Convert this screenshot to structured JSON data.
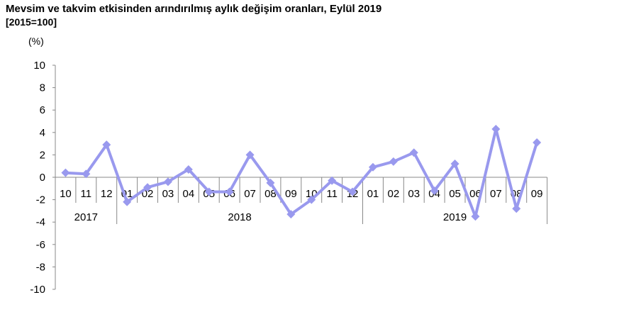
{
  "chart_data": {
    "type": "line",
    "title": "Mevsim ve takvim etkisinden arındırılmış aylık değişim oranları, Eylül 2019",
    "subtitle": "[2015=100]",
    "ylabel": "(%)",
    "ylim": [
      -10,
      10
    ],
    "yticks": [
      "10",
      "8",
      "6",
      "4",
      "2",
      "0",
      "-2",
      "-4",
      "-6",
      "-8",
      "-10"
    ],
    "categories": [
      "10",
      "11",
      "12",
      "01",
      "02",
      "03",
      "04",
      "05",
      "06",
      "07",
      "08",
      "09",
      "10",
      "11",
      "12",
      "01",
      "02",
      "03",
      "04",
      "05",
      "06",
      "07",
      "08",
      "09"
    ],
    "year_groups": [
      {
        "label": "2017",
        "count": 3
      },
      {
        "label": "2018",
        "count": 12
      },
      {
        "label": "2019",
        "count": 9
      }
    ],
    "values": [
      0.4,
      0.3,
      2.9,
      -2.2,
      -0.9,
      -0.4,
      0.7,
      -1.3,
      -1.3,
      2.0,
      -0.5,
      -3.3,
      -2.0,
      -0.3,
      -1.3,
      0.9,
      1.4,
      2.2,
      -1.2,
      1.2,
      -3.5,
      4.3,
      -2.8,
      3.1
    ],
    "series_color": "#9999ee",
    "legend": "none"
  }
}
